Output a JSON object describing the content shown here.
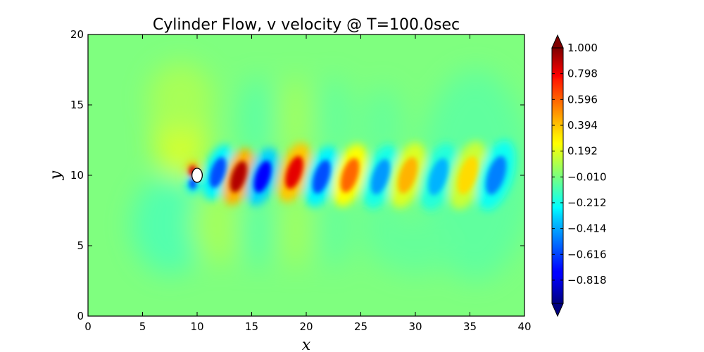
{
  "chart_data": {
    "type": "heatmap",
    "title": "Cylinder Flow, v velocity @ T=100.0sec",
    "xlabel": "x",
    "ylabel": "y",
    "xlim": [
      0,
      40
    ],
    "ylim": [
      0,
      20
    ],
    "x_ticks": [
      "0",
      "5",
      "10",
      "15",
      "20",
      "25",
      "30",
      "35",
      "40"
    ],
    "y_ticks": [
      "0",
      "5",
      "10",
      "15",
      "20"
    ],
    "colorbar": {
      "colormap": "jet",
      "range": [
        -1.0,
        1.0
      ],
      "extend": "both",
      "ticks": [
        "1.000",
        "0.798",
        "0.596",
        "0.394",
        "0.192",
        "−0.010",
        "−0.212",
        "−0.414",
        "−0.616",
        "−0.818"
      ]
    },
    "obstacle": {
      "shape": "ellipse",
      "center": [
        10,
        10
      ],
      "width": 0.95,
      "height": 1.0
    },
    "vortex_street": [
      {
        "x": 9.6,
        "y": 10.3,
        "value": 0.85
      },
      {
        "x": 9.6,
        "y": 9.4,
        "value": -0.6
      },
      {
        "x": 11.9,
        "y": 10.2,
        "value": -0.6
      },
      {
        "x": 13.8,
        "y": 9.9,
        "value": 0.9
      },
      {
        "x": 16.0,
        "y": 9.9,
        "value": -0.75
      },
      {
        "x": 18.9,
        "y": 10.2,
        "value": 0.8
      },
      {
        "x": 21.4,
        "y": 9.9,
        "value": -0.6
      },
      {
        "x": 24.0,
        "y": 10.0,
        "value": 0.55
      },
      {
        "x": 26.8,
        "y": 9.9,
        "value": -0.45
      },
      {
        "x": 29.3,
        "y": 10.0,
        "value": 0.4
      },
      {
        "x": 32.1,
        "y": 9.9,
        "value": -0.4
      },
      {
        "x": 34.8,
        "y": 10.0,
        "value": 0.32
      },
      {
        "x": 37.4,
        "y": 10.0,
        "value": -0.5
      }
    ]
  }
}
